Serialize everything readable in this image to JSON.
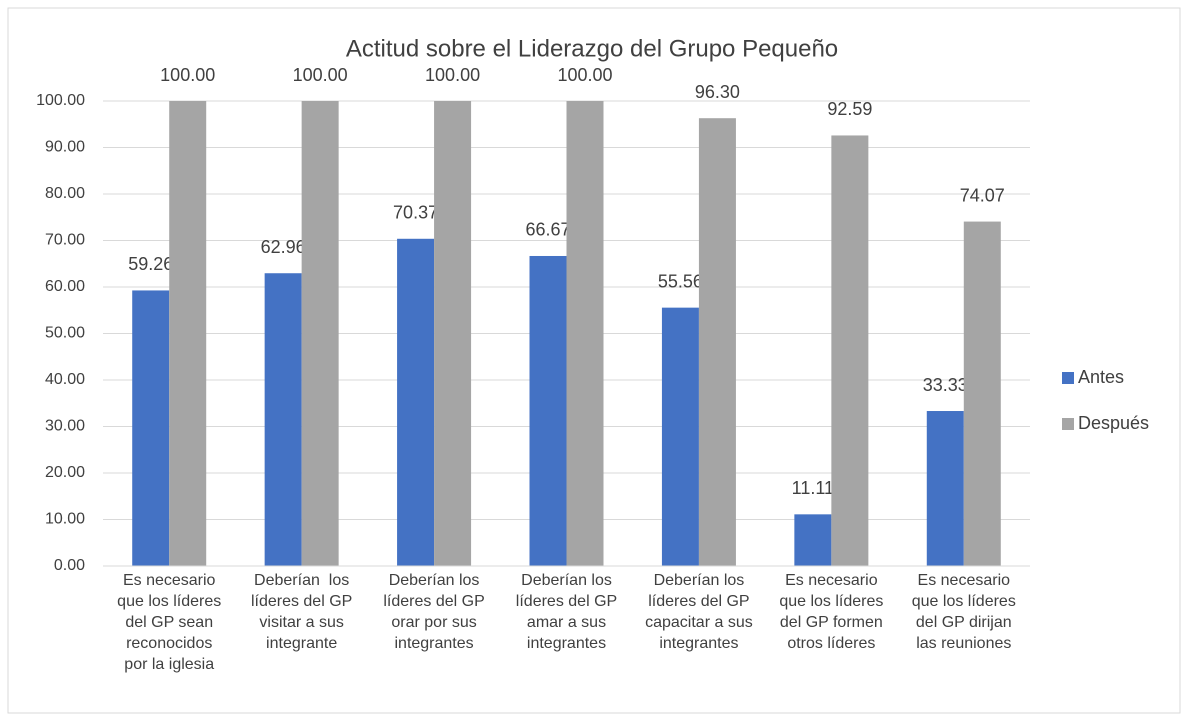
{
  "chart_data": {
    "type": "bar",
    "title": "Actitud sobre el Liderazgo del Grupo Pequeño",
    "categories": [
      [
        "Es necesario",
        "que los líderes",
        "del GP sean",
        "reconocidos",
        "por la iglesia"
      ],
      [
        "Deberían  los",
        "líderes del GP",
        "visitar a sus",
        "integrante"
      ],
      [
        "Deberían los",
        "líderes del GP",
        "orar por sus",
        "integrantes"
      ],
      [
        "Deberían los",
        "líderes del GP",
        "amar a sus",
        "integrantes"
      ],
      [
        "Deberían los",
        "líderes del GP",
        "capacitar a sus",
        "integrantes"
      ],
      [
        "Es necesario",
        "que los líderes",
        "del GP formen",
        "otros líderes"
      ],
      [
        "Es necesario",
        "que los líderes",
        "del GP dirijan",
        "las reuniones"
      ]
    ],
    "series": [
      {
        "name": "Antes",
        "color": "#4472c4",
        "values": [
          59.26,
          62.96,
          70.37,
          66.67,
          55.56,
          11.11,
          33.33
        ],
        "value_labels": [
          "59.26",
          "62.96",
          "70.37",
          "66.67",
          "55.56",
          "11.11",
          "33.33"
        ]
      },
      {
        "name": "Después",
        "color": "#a5a5a5",
        "values": [
          100,
          100,
          100,
          100,
          96.3,
          92.59,
          74.07
        ],
        "value_labels": [
          "100.00",
          "100.00",
          "100.00",
          "100.00",
          "96.30",
          "92.59",
          "74.07"
        ]
      }
    ],
    "ylim": [
      0,
      100
    ],
    "yticks": [
      {
        "value": 0,
        "label": "0.00"
      },
      {
        "value": 10,
        "label": "10.00"
      },
      {
        "value": 20,
        "label": "20.00"
      },
      {
        "value": 30,
        "label": "30.00"
      },
      {
        "value": 40,
        "label": "40.00"
      },
      {
        "value": 50,
        "label": "50.00"
      },
      {
        "value": 60,
        "label": "60.00"
      },
      {
        "value": 70,
        "label": "70.00"
      },
      {
        "value": 80,
        "label": "80.00"
      },
      {
        "value": 90,
        "label": "90.00"
      },
      {
        "value": 100,
        "label": "100.00"
      }
    ],
    "grid": true,
    "legend": "right"
  }
}
